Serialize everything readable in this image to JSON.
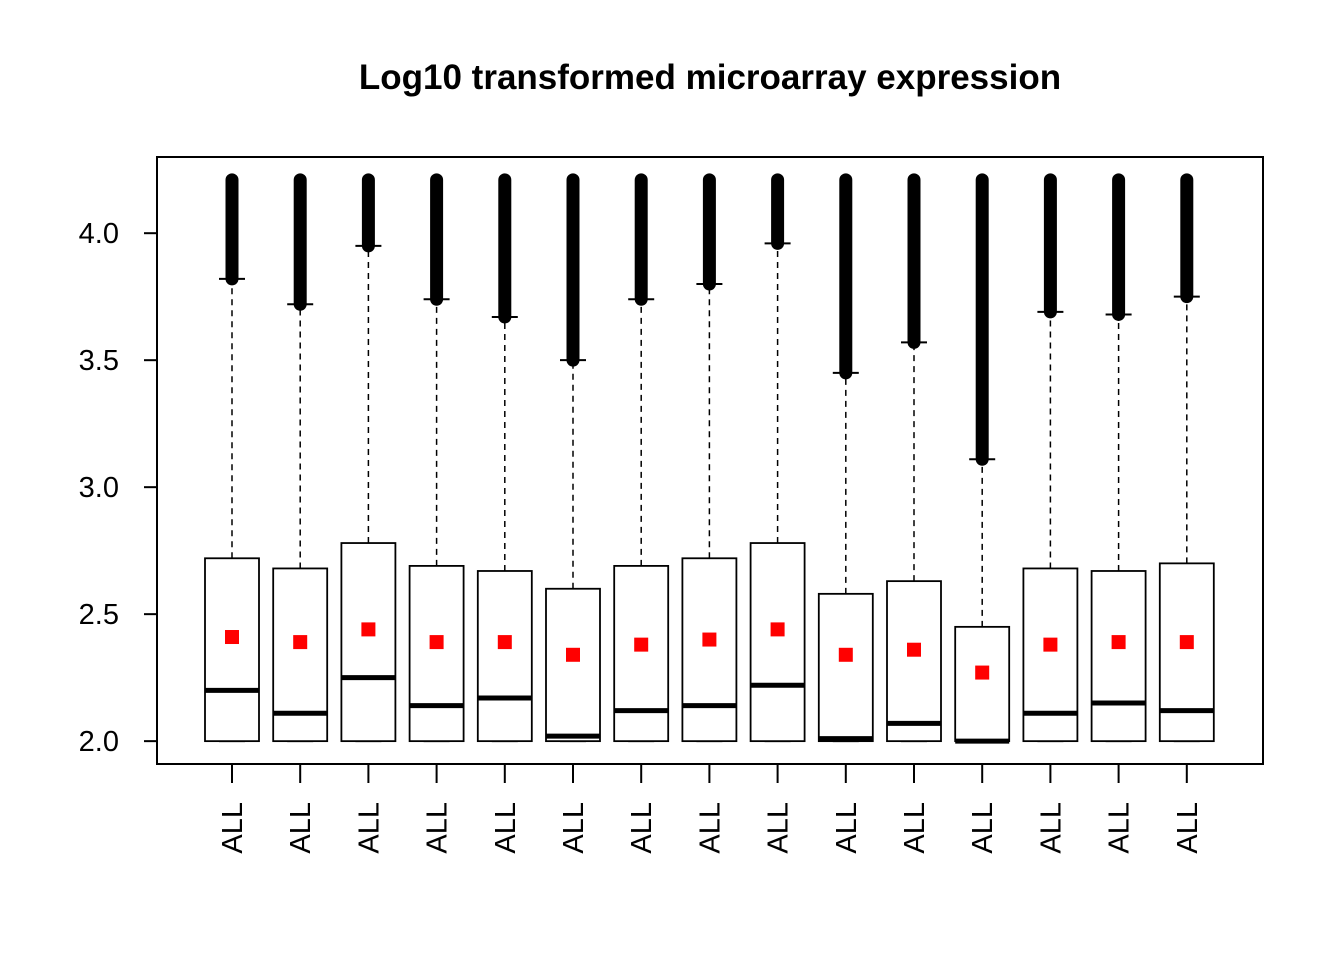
{
  "chart_data": {
    "type": "box",
    "title": "Log10 transformed microarray expression",
    "xlabel": "",
    "ylabel": "",
    "ylim": [
      1.91,
      4.3
    ],
    "yticks": [
      2.0,
      2.5,
      3.0,
      3.5,
      4.0
    ],
    "ytick_labels": [
      "2.0",
      "2.5",
      "3.0",
      "3.5",
      "4.0"
    ],
    "grid": false,
    "mean_color": "#ff0000",
    "categories": [
      "ALL",
      "ALL",
      "ALL",
      "ALL",
      "ALL",
      "ALL",
      "ALL",
      "ALL",
      "ALL",
      "ALL",
      "ALL",
      "ALL",
      "ALL",
      "ALL",
      "ALL"
    ],
    "boxes": [
      {
        "min": 2.0,
        "q1": 2.0,
        "median": 2.2,
        "q3": 2.72,
        "whisker_high": 3.82,
        "max": 4.21,
        "mean": 2.41
      },
      {
        "min": 2.0,
        "q1": 2.0,
        "median": 2.11,
        "q3": 2.68,
        "whisker_high": 3.72,
        "max": 4.21,
        "mean": 2.39
      },
      {
        "min": 2.0,
        "q1": 2.0,
        "median": 2.25,
        "q3": 2.78,
        "whisker_high": 3.95,
        "max": 4.21,
        "mean": 2.44
      },
      {
        "min": 2.0,
        "q1": 2.0,
        "median": 2.14,
        "q3": 2.69,
        "whisker_high": 3.74,
        "max": 4.21,
        "mean": 2.39
      },
      {
        "min": 2.0,
        "q1": 2.0,
        "median": 2.17,
        "q3": 2.67,
        "whisker_high": 3.67,
        "max": 4.21,
        "mean": 2.39
      },
      {
        "min": 2.0,
        "q1": 2.0,
        "median": 2.02,
        "q3": 2.6,
        "whisker_high": 3.5,
        "max": 4.21,
        "mean": 2.34
      },
      {
        "min": 2.0,
        "q1": 2.0,
        "median": 2.12,
        "q3": 2.69,
        "whisker_high": 3.74,
        "max": 4.21,
        "mean": 2.38
      },
      {
        "min": 2.0,
        "q1": 2.0,
        "median": 2.14,
        "q3": 2.72,
        "whisker_high": 3.8,
        "max": 4.21,
        "mean": 2.4
      },
      {
        "min": 2.0,
        "q1": 2.0,
        "median": 2.22,
        "q3": 2.78,
        "whisker_high": 3.96,
        "max": 4.21,
        "mean": 2.44
      },
      {
        "min": 2.0,
        "q1": 2.0,
        "median": 2.01,
        "q3": 2.58,
        "whisker_high": 3.45,
        "max": 4.21,
        "mean": 2.34
      },
      {
        "min": 2.0,
        "q1": 2.0,
        "median": 2.07,
        "q3": 2.63,
        "whisker_high": 3.57,
        "max": 4.21,
        "mean": 2.36
      },
      {
        "min": 2.0,
        "q1": 2.0,
        "median": 2.0,
        "q3": 2.45,
        "whisker_high": 3.11,
        "max": 4.21,
        "mean": 2.27
      },
      {
        "min": 2.0,
        "q1": 2.0,
        "median": 2.11,
        "q3": 2.68,
        "whisker_high": 3.69,
        "max": 4.21,
        "mean": 2.38
      },
      {
        "min": 2.0,
        "q1": 2.0,
        "median": 2.15,
        "q3": 2.67,
        "whisker_high": 3.68,
        "max": 4.21,
        "mean": 2.39
      },
      {
        "min": 2.0,
        "q1": 2.0,
        "median": 2.12,
        "q3": 2.7,
        "whisker_high": 3.75,
        "max": 4.21,
        "mean": 2.39
      }
    ]
  }
}
